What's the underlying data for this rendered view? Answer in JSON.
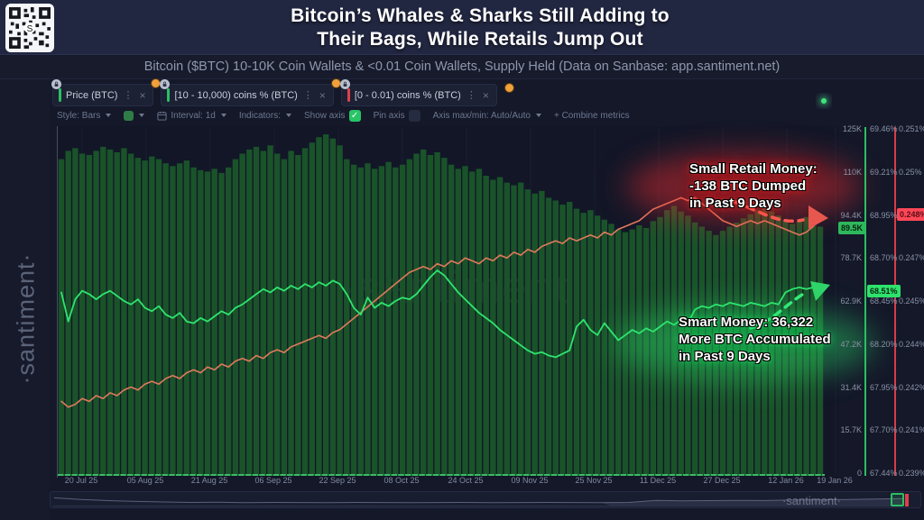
{
  "header": {
    "title_line1": "Bitcoin’s Whales & Sharks Still Adding to",
    "title_line2": "Their Bags, While Retails Jump Out",
    "subtitle": "Bitcoin ($BTC) 10-10K Coin Wallets & <0.01 Coin Wallets, Supply Held (Data on Sanbase: app.santiment.net)"
  },
  "watermark": {
    "sidebar": "·santiment·",
    "chart": "·santiment·",
    "navigator": "·santiment·"
  },
  "tabs": [
    {
      "label": "Price (BTC)",
      "indicator_style": "background:#2bbf62",
      "locked": true,
      "badge": false
    },
    {
      "label": "[10 - 10,000) coins % (BTC)",
      "indicator_style": "background:#2bbf62",
      "locked": true,
      "badge": true
    },
    {
      "label": "[0 - 0.01) coins % (BTC)",
      "indicator_style": "background:#e0404a",
      "locked": true,
      "badge": true
    }
  ],
  "toolbar": {
    "style_label": "Style: Bars",
    "interval_label": "Interval: 1d",
    "indicators_label": "Indicators:",
    "show_axis_label": "Show axis",
    "pin_axis_label": "Pin axis",
    "axis_maxmin_label": "Axis max/min: Auto/Auto",
    "combine_label": "+ Combine metrics"
  },
  "annotations": {
    "retail": {
      "line1": "Small Retail Money:",
      "line2": "-138 BTC Dumped",
      "line3": "in Past 9 Days"
    },
    "smart": {
      "line1": "Smart Money: 36,322",
      "line2": "More BTC Accumulated",
      "line3": "in Past 9 Days"
    }
  },
  "axes": {
    "price_ticks": [
      "125K",
      "110K",
      "94.4K",
      "78.7K",
      "62.9K",
      "47.2K",
      "31.4K",
      "15.7K",
      "0"
    ],
    "green_ticks": [
      "69.46%",
      "69.21%",
      "68.95%",
      "68.70%",
      "68.45%",
      "68.20%",
      "67.95%",
      "67.70%",
      "67.44%"
    ],
    "red_ticks": [
      "0.251%",
      "0.25%",
      "0.248%",
      "0.247%",
      "0.245%",
      "0.244%",
      "0.242%",
      "0.241%",
      "0.239%"
    ],
    "price_current": "89.5K",
    "green_current": "68.51%",
    "red_current": "0.248%",
    "colors": {
      "green_axis": "#2bbf62",
      "red_axis": "#d93a46",
      "price_badge_bg": "#2eb85c",
      "green_badge_bg": "#2ee36b",
      "red_badge_bg": "#ff4757"
    }
  },
  "x_labels": [
    "20 Jul 25",
    "05 Aug 25",
    "21 Aug 25",
    "06 Sep 25",
    "22 Sep 25",
    "08 Oct 25",
    "24 Oct 25",
    "09 Nov 25",
    "25 Nov 25",
    "11 Dec 25",
    "27 Dec 25",
    "12 Jan 26",
    "19 Jan 26"
  ],
  "chart_data": {
    "type": "mixed",
    "x_start": "20 Jul 25",
    "x_end": "19 Jan 26",
    "grid": "faint-vertical",
    "legend_position": "tabs-top",
    "series": [
      {
        "name": "Price (BTC)",
        "type": "bar",
        "color": "#1a532a",
        "unit": "thousand USD",
        "axis_min": 0,
        "axis_max": 125,
        "values": [
          114,
          117,
          118,
          116,
          115.5,
          117,
          118.5,
          117.5,
          116.5,
          118,
          116,
          114.5,
          113.5,
          115,
          114,
          112.5,
          111.5,
          112.5,
          113.5,
          111,
          110,
          109.5,
          110.5,
          109,
          111,
          114,
          116,
          117.5,
          118.5,
          117,
          119,
          116,
          114,
          117,
          115.5,
          118,
          120,
          122,
          123,
          121.5,
          119,
          114,
          112,
          111,
          112.5,
          110.5,
          111.5,
          113,
          111,
          112,
          114,
          116,
          117.5,
          115.5,
          116.5,
          114.5,
          112,
          110.5,
          111.5,
          109.5,
          110.5,
          108,
          106.5,
          107.5,
          105.5,
          104.5,
          105.5,
          103,
          101.5,
          102.5,
          100,
          99,
          97.5,
          98.5,
          96,
          94.5,
          95.5,
          93.5,
          92,
          90.5,
          88.5,
          87.5,
          88.5,
          90,
          89,
          91.5,
          93,
          95.5,
          97,
          95,
          93.5,
          91,
          89.5,
          88,
          86.5,
          88,
          89.5,
          91,
          92.5,
          94,
          95.5,
          96.5,
          95,
          93.5,
          92,
          90.5,
          91.5,
          93,
          92,
          89.5
        ]
      },
      {
        "name": "[10 - 10,000) coins % (BTC)",
        "type": "line",
        "color": "#2ee56e",
        "unit": "%",
        "axis_min": 67.44,
        "axis_max": 69.46,
        "values": [
          68.5,
          68.33,
          68.46,
          68.51,
          68.49,
          68.46,
          68.49,
          68.51,
          68.48,
          68.45,
          68.43,
          68.46,
          68.41,
          68.39,
          68.42,
          68.37,
          68.35,
          68.38,
          68.33,
          68.32,
          68.35,
          68.33,
          68.36,
          68.39,
          68.37,
          68.41,
          68.43,
          68.46,
          68.49,
          68.52,
          68.5,
          68.53,
          68.51,
          68.54,
          68.52,
          68.55,
          68.53,
          68.56,
          68.54,
          68.57,
          68.55,
          68.49,
          68.41,
          68.37,
          68.47,
          68.41,
          68.44,
          68.42,
          68.45,
          68.47,
          68.46,
          68.49,
          68.54,
          68.59,
          68.63,
          68.6,
          68.55,
          68.5,
          68.46,
          68.42,
          68.38,
          68.35,
          68.32,
          68.28,
          68.25,
          68.22,
          68.19,
          68.16,
          68.14,
          68.15,
          68.13,
          68.12,
          68.14,
          68.16,
          68.3,
          68.34,
          68.28,
          68.25,
          68.32,
          68.27,
          68.22,
          68.25,
          68.28,
          68.26,
          68.29,
          68.27,
          68.3,
          68.33,
          68.31,
          68.34,
          68.32,
          68.4,
          68.42,
          68.41,
          68.43,
          68.42,
          68.44,
          68.43,
          68.42,
          68.44,
          68.43,
          68.42,
          68.44,
          68.43,
          68.5,
          68.52,
          68.53,
          68.52,
          68.53,
          68.51
        ]
      },
      {
        "name": "[0 - 0.01) coins % (BTC)",
        "type": "line",
        "color": "#e0795c",
        "unit": "%",
        "axis_min": 0.239,
        "axis_max": 0.251,
        "values": [
          0.2415,
          0.2413,
          0.2414,
          0.2416,
          0.2415,
          0.2417,
          0.2416,
          0.2418,
          0.2417,
          0.2419,
          0.242,
          0.2419,
          0.2421,
          0.2422,
          0.2421,
          0.2423,
          0.2424,
          0.2423,
          0.2425,
          0.2426,
          0.2425,
          0.2427,
          0.2426,
          0.2428,
          0.2427,
          0.2429,
          0.243,
          0.2429,
          0.2431,
          0.243,
          0.2432,
          0.2433,
          0.2432,
          0.2434,
          0.2435,
          0.2436,
          0.2437,
          0.2438,
          0.2437,
          0.2439,
          0.244,
          0.2442,
          0.2444,
          0.2446,
          0.2448,
          0.245,
          0.2452,
          0.2454,
          0.2456,
          0.2458,
          0.246,
          0.2461,
          0.2462,
          0.2461,
          0.2463,
          0.2462,
          0.2464,
          0.2463,
          0.2465,
          0.2464,
          0.2463,
          0.2465,
          0.2464,
          0.2466,
          0.2465,
          0.2467,
          0.2466,
          0.2468,
          0.2467,
          0.2469,
          0.247,
          0.2471,
          0.247,
          0.2472,
          0.2471,
          0.2472,
          0.2473,
          0.2472,
          0.2474,
          0.2473,
          0.2475,
          0.2476,
          0.2477,
          0.2478,
          0.248,
          0.2482,
          0.2483,
          0.2484,
          0.2485,
          0.2486,
          0.2485,
          0.2486,
          0.2484,
          0.2482,
          0.248,
          0.2478,
          0.2477,
          0.2476,
          0.2477,
          0.2478,
          0.2477,
          0.2478,
          0.2477,
          0.2476,
          0.2475,
          0.2474,
          0.2473,
          0.2474,
          0.2476,
          0.248
        ]
      }
    ],
    "navigator_preview": [
      0.78,
      0.62,
      0.5,
      0.42,
      0.36,
      0.32,
      0.34,
      0.3,
      0.32,
      0.31,
      0.3,
      0.32,
      0.31,
      0.3,
      0.31,
      0.32,
      0.3,
      0.31,
      0.32,
      0.31,
      0.3,
      0.32,
      0.52,
      0.48,
      0.5,
      0.52,
      0.51,
      0.56,
      0.58,
      0.62,
      0.66,
      0.7
    ]
  }
}
